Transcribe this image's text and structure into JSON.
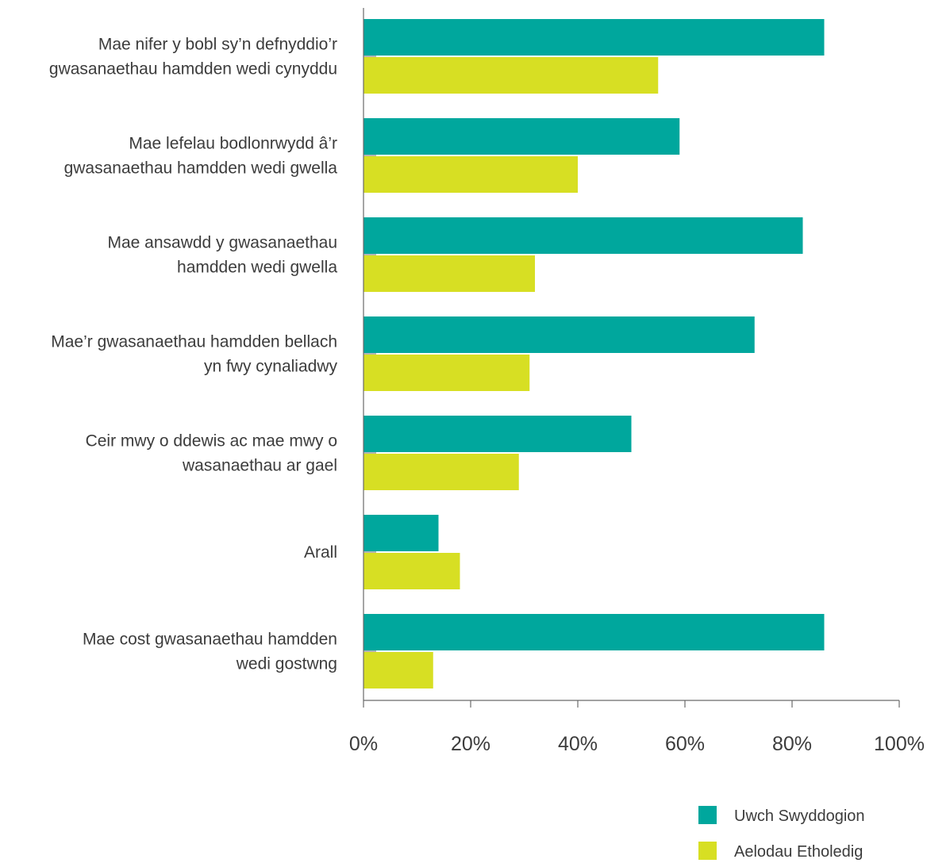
{
  "chart_data": {
    "type": "bar",
    "orientation": "horizontal",
    "categories": [
      [
        "Mae nifer y bobl sy’n defnyddio’r",
        "gwasanaethau hamdden wedi cynyddu"
      ],
      [
        "Mae lefelau bodlonrwydd â’r",
        "gwasanaethau hamdden wedi gwella"
      ],
      [
        "Mae ansawdd y gwasanaethau",
        "hamdden wedi gwella"
      ],
      [
        "Mae’r gwasanaethau hamdden bellach",
        "yn fwy cynaliadwy"
      ],
      [
        "Ceir mwy o ddewis ac mae mwy o",
        "wasanaethau ar gael"
      ],
      [
        "Arall"
      ],
      [
        "Mae cost gwasanaethau hamdden",
        "wedi gostwng"
      ]
    ],
    "series": [
      {
        "name": "Uwch Swyddogion",
        "color": "#00a79d",
        "values": [
          86,
          59,
          82,
          73,
          50,
          14,
          86
        ]
      },
      {
        "name": "Aelodau Etholedig",
        "color": "#d7df23",
        "values": [
          55,
          40,
          32,
          31,
          29,
          18,
          13
        ]
      }
    ],
    "xlim": [
      0,
      100
    ],
    "xticks": [
      "0%",
      "20%",
      "40%",
      "60%",
      "80%",
      "100%"
    ],
    "grid": false,
    "legend_position": "bottom-right"
  }
}
